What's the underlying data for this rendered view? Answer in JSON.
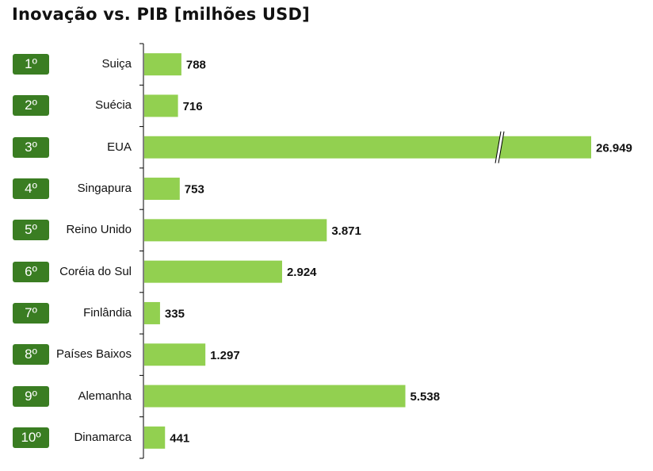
{
  "title": "Inovação vs. PIB [milhões USD]",
  "colors": {
    "bar": "#92d050",
    "badge": "#3a7d22",
    "axis": "#000000"
  },
  "chart_data": {
    "type": "bar",
    "orientation": "horizontal",
    "title": "Inovação vs. PIB [milhões USD]",
    "ranks": [
      "1º",
      "2º",
      "3º",
      "4º",
      "5º",
      "6º",
      "7º",
      "8º",
      "9º",
      "10º"
    ],
    "categories": [
      "Suiça",
      "Suécia",
      "EUA",
      "Singapura",
      "Reino Unido",
      "Coréia do Sul",
      "Finlândia",
      "Países Baixos",
      "Alemanha",
      "Dinamarca"
    ],
    "values": [
      788,
      716,
      26949,
      753,
      3871,
      2924,
      335,
      1297,
      5538,
      441
    ],
    "labels": [
      "788",
      "716",
      "26.949",
      "753",
      "3.871",
      "2.924",
      "335",
      "1.297",
      "5.538",
      "441"
    ],
    "broken_axis_bars": [
      "EUA"
    ],
    "xlabel": "",
    "ylabel": "",
    "grid": false,
    "legend": "none"
  }
}
